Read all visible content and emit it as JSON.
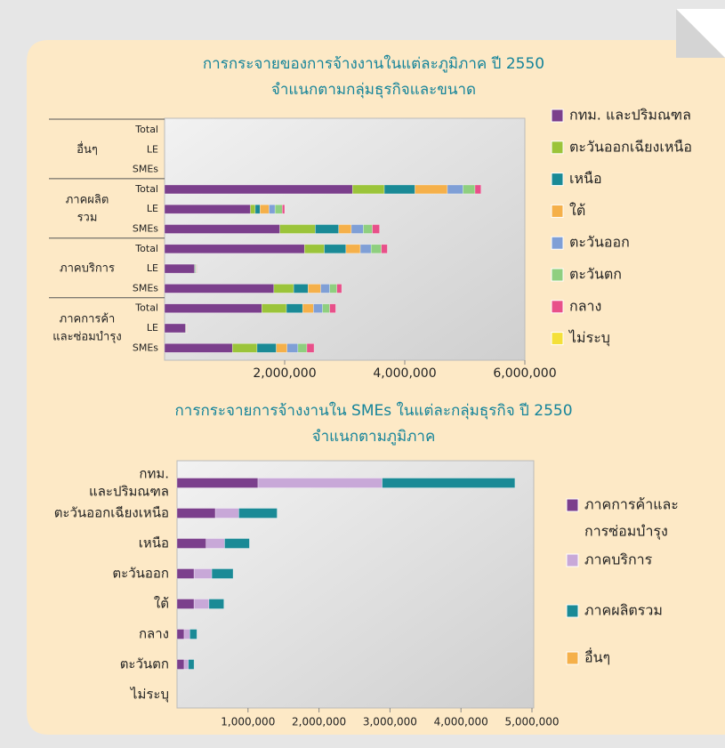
{
  "chart_data": [
    {
      "type": "bar",
      "orientation": "horizontal",
      "stacked": true,
      "title": [
        "การกระจายของการจ้างงานในแต่ละภูมิภาค ปี 2550",
        "จำแนกตามกลุ่มธุรกิจและขนาด"
      ],
      "groups": [
        [
          "อื่นๆ"
        ],
        [
          "ภาคผลิต",
          "รวม"
        ],
        [
          "ภาคบริการ"
        ],
        [
          "ภาคการค้า",
          "และซ่อมบำรุง"
        ]
      ],
      "categories": [
        "Total",
        "LE",
        "SMEs",
        "Total",
        "LE",
        "SMEs",
        "Total",
        "LE",
        "SMEs",
        "Total",
        "LE",
        "SMEs"
      ],
      "series": [
        {
          "name": "กทม. และปริมณฑล",
          "color": "#7b3f8c",
          "values": [
            0,
            0,
            0,
            3130000,
            1430000,
            1920000,
            2330000,
            500000,
            1820000,
            1620000,
            350000,
            1130000
          ]
        },
        {
          "name": "ตะวันออกเฉียงเหนือ",
          "color": "#9bc43a",
          "values": [
            0,
            0,
            0,
            530000,
            80000,
            590000,
            330000,
            10000,
            330000,
            410000,
            5000,
            410000
          ]
        },
        {
          "name": "เหนือ",
          "color": "#1a8a96",
          "values": [
            0,
            0,
            0,
            510000,
            80000,
            390000,
            360000,
            10000,
            240000,
            270000,
            5000,
            320000
          ]
        },
        {
          "name": "ใต้",
          "color": "#f5b04a",
          "values": [
            0,
            0,
            0,
            540000,
            150000,
            210000,
            240000,
            10000,
            210000,
            180000,
            5000,
            180000
          ]
        },
        {
          "name": "ตะวันออก",
          "color": "#7f9fd6",
          "values": [
            0,
            0,
            0,
            260000,
            100000,
            200000,
            180000,
            10000,
            150000,
            150000,
            5000,
            180000
          ]
        },
        {
          "name": "ตะวันตก",
          "color": "#8fcf7f",
          "values": [
            0,
            0,
            0,
            200000,
            120000,
            150000,
            170000,
            5000,
            120000,
            120000,
            5000,
            150000
          ]
        },
        {
          "name": "กลาง",
          "color": "#e8508a",
          "values": [
            0,
            0,
            0,
            100000,
            40000,
            120000,
            100000,
            5000,
            80000,
            100000,
            5000,
            120000
          ]
        },
        {
          "name": "ไม่ระบุ",
          "color": "#f4e03a",
          "values": [
            0,
            0,
            0,
            0,
            0,
            0,
            0,
            0,
            0,
            0,
            0,
            0
          ]
        }
      ],
      "xlim": [
        0,
        6000000
      ],
      "xticks": [
        {
          "value": 2000000,
          "label": "2,000,000"
        },
        {
          "value": 4000000,
          "label": "4,000,000"
        },
        {
          "value": 6000000,
          "label": "6,000,000"
        }
      ]
    },
    {
      "type": "bar",
      "orientation": "horizontal",
      "stacked": true,
      "title": [
        "การกระจายการจ้างงานใน SMEs ในแต่ละกลุ่มธุรกิจ ปี 2550",
        "จำแนกตามภูมิภาค"
      ],
      "categories": [
        [
          "กทม.",
          "และปริมณฑล"
        ],
        [
          "ตะวันออกเฉียงเหนือ"
        ],
        [
          "เหนือ"
        ],
        [
          "ตะวันออก"
        ],
        [
          "ใต้"
        ],
        [
          "กลาง"
        ],
        [
          "ตะวันตก"
        ],
        [
          "ไม่ระบุ"
        ]
      ],
      "series": [
        {
          "name": [
            "ภาคการค้าและ",
            "การซ่อมบำรุง"
          ],
          "color": "#7b3f8c",
          "values": [
            1140000,
            540000,
            410000,
            240000,
            240000,
            100000,
            100000,
            0
          ]
        },
        {
          "name": [
            "ภาคบริการ"
          ],
          "color": "#c8a8d8",
          "values": [
            1750000,
            330000,
            260000,
            250000,
            210000,
            80000,
            60000,
            0
          ]
        },
        {
          "name": [
            "ภาคผลิตรวม"
          ],
          "color": "#1a8a96",
          "values": [
            1870000,
            540000,
            350000,
            300000,
            210000,
            100000,
            80000,
            0
          ]
        },
        {
          "name": [
            "อื่นๆ"
          ],
          "color": "#f5b04a",
          "values": [
            0,
            0,
            0,
            0,
            0,
            0,
            0,
            0
          ]
        }
      ],
      "xlim": [
        0,
        5000000
      ],
      "xticks": [
        {
          "value": 1000000,
          "label": "1,000,000"
        },
        {
          "value": 2000000,
          "label": "2,000,000"
        },
        {
          "value": 3000000,
          "label": "3,000,000"
        },
        {
          "value": 4000000,
          "label": "4,000,000"
        },
        {
          "value": 5000000,
          "label": "5,000,000"
        }
      ]
    }
  ]
}
